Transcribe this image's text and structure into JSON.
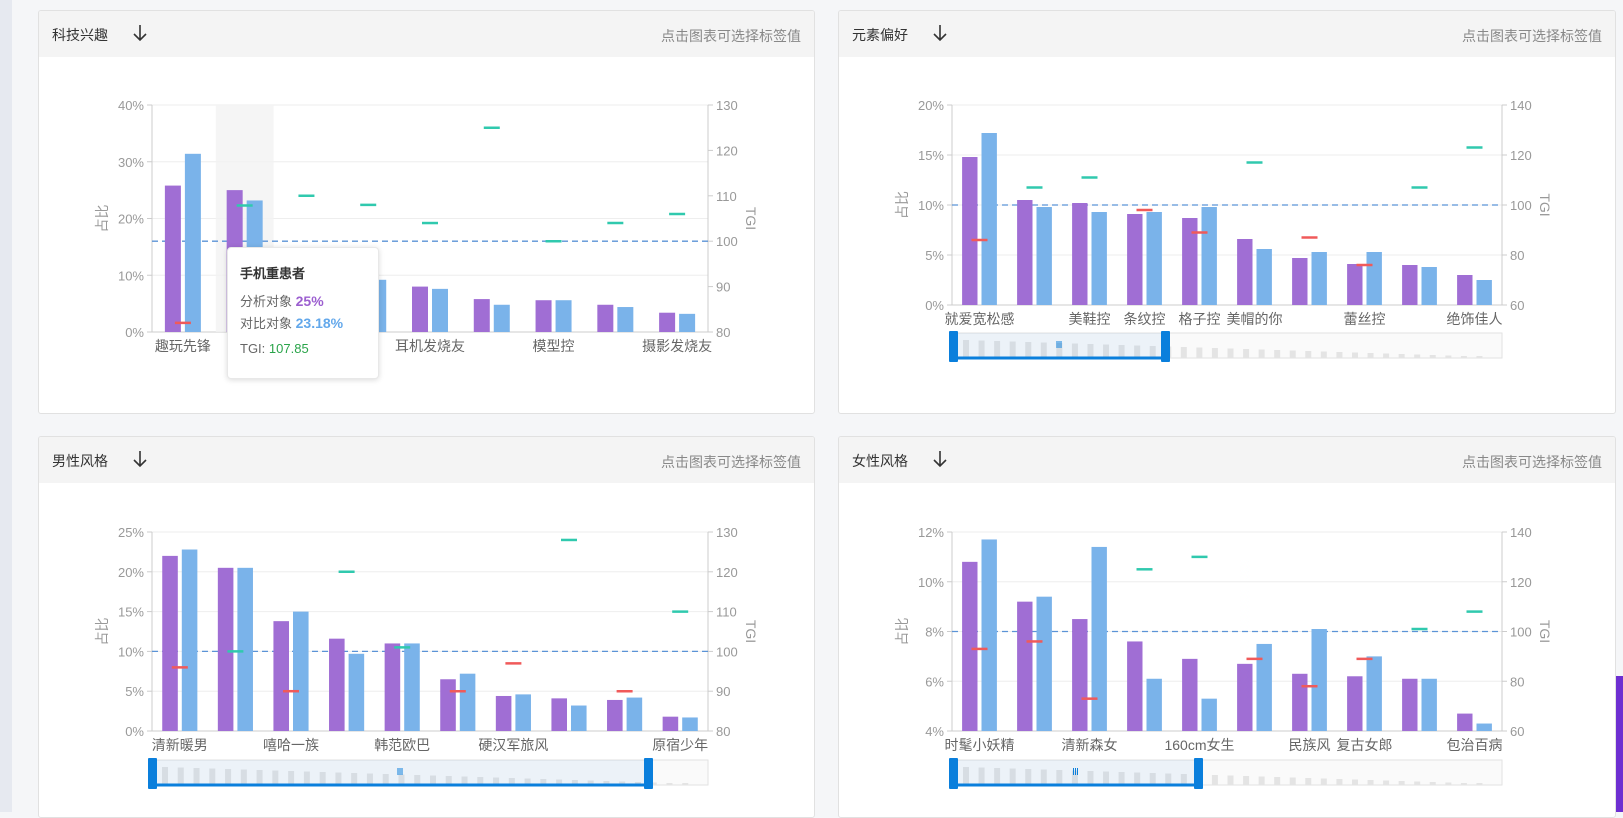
{
  "colors": {
    "analysis_bar": "#a06ed4",
    "contrast_bar": "#7ab3ea",
    "tgi_high": "#30c9ae",
    "tgi_low": "#f05a5a",
    "baseline": "#5b93d6",
    "accent": "#0a7fdc"
  },
  "header": {
    "sort_icon": "arrow-down-icon",
    "hint": "点击图表可选择标签值"
  },
  "tooltip": {
    "title": "手机重患者",
    "analysis_label": "分析对象",
    "analysis_value": "25%",
    "contrast_label": "对比对象",
    "contrast_value": "23.18%",
    "tgi_label": "TGI:",
    "tgi_value": "107.85"
  },
  "chart_data": [
    {
      "type": "bar",
      "title": "科技兴趣",
      "ylabel": "占比",
      "y2label": "TGI",
      "ylim": [
        0,
        40
      ],
      "y2lim": [
        80,
        130
      ],
      "yticks": [
        "0%",
        "10%",
        "20%",
        "30%",
        "40%"
      ],
      "y2ticks": [
        "80",
        "90",
        "100",
        "110",
        "120",
        "130"
      ],
      "categories": [
        "趣玩先锋",
        "手机重患者",
        "",
        "",
        "耳机发烧友",
        "",
        "模型控",
        "",
        "摄影发烧友"
      ],
      "shown_labels": [
        0,
        4,
        6,
        8
      ],
      "series": [
        {
          "name": "分析对象",
          "values": [
            25.8,
            25,
            9.6,
            9.6,
            8,
            5.8,
            5.6,
            4.8,
            3.4
          ]
        },
        {
          "name": "对比对象",
          "values": [
            31.4,
            23.18,
            9.2,
            9.2,
            7.6,
            4.8,
            5.6,
            4.4,
            3.2
          ]
        }
      ],
      "tgi": [
        82,
        107.85,
        110,
        108,
        104,
        125,
        100,
        104,
        106
      ],
      "baseline_tgi": 100,
      "zoom": false
    },
    {
      "type": "bar",
      "title": "元素偏好",
      "ylabel": "占比",
      "y2label": "TGI",
      "ylim": [
        0,
        20
      ],
      "y2lim": [
        60,
        140
      ],
      "yticks": [
        "0%",
        "5%",
        "10%",
        "15%",
        "20%"
      ],
      "y2ticks": [
        "60",
        "80",
        "100",
        "120",
        "140"
      ],
      "categories": [
        "就爱宽松感",
        "",
        "美鞋控",
        "条纹控",
        "格子控",
        "美帽的你",
        "",
        "蕾丝控",
        "",
        "绝饰佳人"
      ],
      "shown_labels": [
        0,
        2,
        3,
        4,
        5,
        7,
        9
      ],
      "series": [
        {
          "name": "分析对象",
          "values": [
            14.8,
            10.5,
            10.2,
            9.1,
            8.7,
            6.6,
            4.7,
            4.1,
            4,
            3
          ]
        },
        {
          "name": "对比对象",
          "values": [
            17.2,
            9.8,
            9.3,
            9.3,
            9.8,
            5.6,
            5.3,
            5.3,
            3.8,
            2.5
          ]
        }
      ],
      "tgi": [
        86,
        107,
        111,
        98,
        89,
        117,
        87,
        76,
        107,
        123
      ],
      "baseline_tgi": 100,
      "zoom": true
    },
    {
      "type": "bar",
      "title": "男性风格",
      "ylabel": "占比",
      "y2label": "TGI",
      "ylim": [
        0,
        25
      ],
      "y2lim": [
        80,
        130
      ],
      "yticks": [
        "0%",
        "5%",
        "10%",
        "15%",
        "20%",
        "25%"
      ],
      "y2ticks": [
        "80",
        "90",
        "100",
        "110",
        "120",
        "130"
      ],
      "categories": [
        "清新暖男",
        "",
        "嘻哈一族",
        "",
        "韩范欧巴",
        "",
        "硬汉军旅风",
        "",
        "",
        "原宿少年"
      ],
      "shown_labels": [
        0,
        2,
        4,
        6,
        9
      ],
      "series": [
        {
          "name": "分析对象",
          "values": [
            22,
            20.5,
            13.8,
            11.6,
            11,
            6.5,
            4.4,
            4.1,
            3.9,
            1.8
          ]
        },
        {
          "name": "对比对象",
          "values": [
            22.8,
            20.5,
            15,
            9.7,
            11,
            7.2,
            4.6,
            3.2,
            4.2,
            1.7
          ]
        }
      ],
      "tgi": [
        96,
        100,
        90,
        120,
        101,
        90,
        97,
        128,
        90,
        110
      ],
      "baseline_tgi": 100,
      "zoom": true
    },
    {
      "type": "bar",
      "title": "女性风格",
      "ylabel": "占比",
      "y2label": "TGI",
      "ylim": [
        4,
        12
      ],
      "y2lim": [
        60,
        140
      ],
      "yticks": [
        "4%",
        "6%",
        "8%",
        "10%",
        "12%"
      ],
      "y2ticks": [
        "60",
        "80",
        "100",
        "120",
        "140"
      ],
      "categories": [
        "时髦小妖精",
        "",
        "清新森女",
        "",
        "160cm女生",
        "",
        "民族风",
        "复古女郎",
        "",
        "包治百病"
      ],
      "shown_labels": [
        0,
        2,
        4,
        6,
        7,
        9
      ],
      "series": [
        {
          "name": "分析对象",
          "values": [
            10.8,
            9.2,
            8.5,
            7.6,
            6.9,
            6.7,
            6.3,
            6.2,
            6.1,
            4.7
          ]
        },
        {
          "name": "对比对象",
          "values": [
            11.7,
            9.4,
            11.4,
            6.1,
            5.3,
            7.5,
            8.1,
            7,
            6.1,
            4.3
          ]
        }
      ],
      "tgi": [
        93,
        96,
        73,
        125,
        130,
        89,
        78,
        89,
        101,
        108
      ],
      "baseline_tgi": 100,
      "zoom": true
    }
  ]
}
